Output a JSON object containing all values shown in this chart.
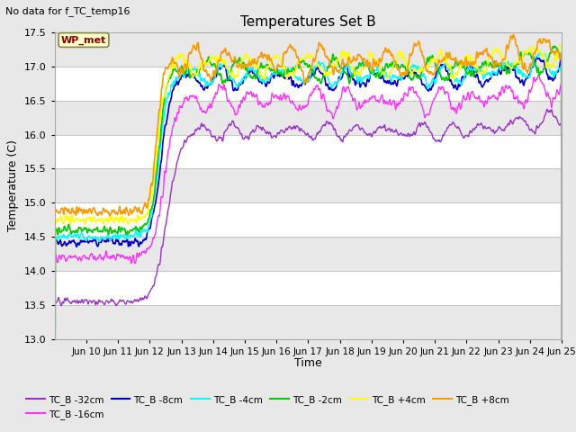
{
  "title": "Temperatures Set B",
  "subtitle": "No data for f_TC_temp16",
  "xlabel": "Time",
  "ylabel": "Temperature (C)",
  "ylim": [
    13.0,
    17.5
  ],
  "xlim_days": [
    9,
    25
  ],
  "x_ticks_labels": [
    "Jun 10",
    "Jun 11",
    "Jun 12",
    "Jun 13",
    "Jun 14",
    "Jun 15",
    "Jun 16",
    "Jun 17",
    "Jun 18",
    "Jun 19",
    "Jun 20",
    "Jun 21",
    "Jun 22",
    "Jun 23",
    "Jun 24",
    "Jun 25"
  ],
  "x_ticks_positions": [
    10,
    11,
    12,
    13,
    14,
    15,
    16,
    17,
    18,
    19,
    20,
    21,
    22,
    23,
    24,
    25
  ],
  "yticks": [
    13.0,
    13.5,
    14.0,
    14.5,
    15.0,
    15.5,
    16.0,
    16.5,
    17.0,
    17.5
  ],
  "series_colors": {
    "TC_B -32cm": "#9933cc",
    "TC_B -16cm": "#ff33ff",
    "TC_B -8cm": "#0000cc",
    "TC_B -4cm": "#00ffff",
    "TC_B -2cm": "#00cc00",
    "TC_B +4cm": "#ffff00",
    "TC_B +8cm": "#ff9900"
  },
  "series_linewidths": {
    "TC_B -32cm": 1.0,
    "TC_B -16cm": 1.0,
    "TC_B -8cm": 1.2,
    "TC_B -4cm": 1.2,
    "TC_B -2cm": 1.2,
    "TC_B +4cm": 1.2,
    "TC_B +8cm": 1.2
  },
  "wp_met_label": "WP_met",
  "bg_color": "#e8e8e8",
  "plot_bg_color": "#ffffff",
  "grid_color": "#cccccc",
  "grid_linewidth": 0.8
}
